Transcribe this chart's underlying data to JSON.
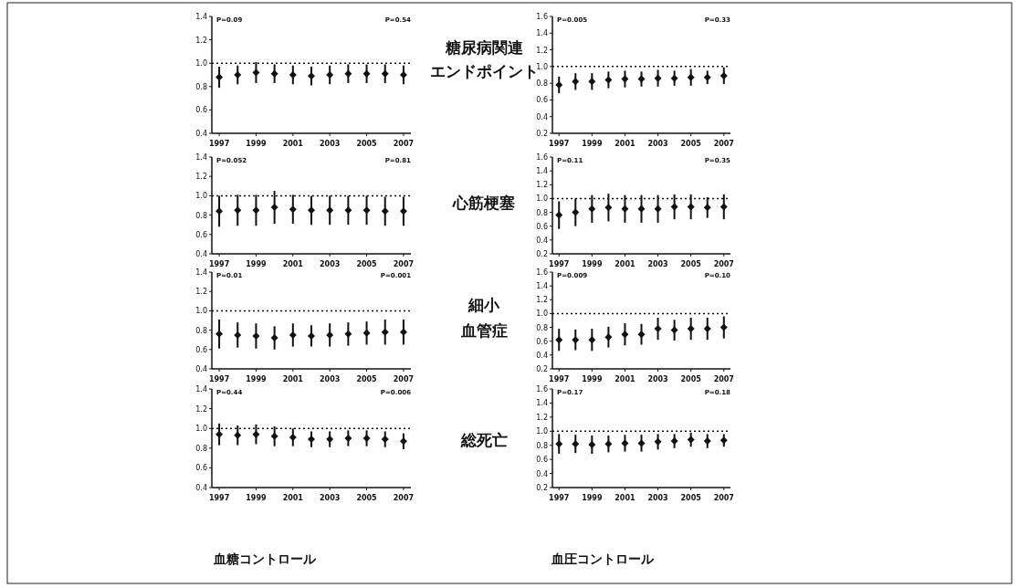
{
  "chart_data": [
    {
      "type": "scatter",
      "x": [
        1997,
        1998,
        1999,
        2000,
        2001,
        2002,
        2003,
        2004,
        2005,
        2006,
        2007
      ],
      "values": [
        0.88,
        0.9,
        0.92,
        0.91,
        0.9,
        0.89,
        0.9,
        0.91,
        0.91,
        0.91,
        0.9
      ],
      "errors": [
        0.09,
        0.08,
        0.09,
        0.08,
        0.08,
        0.08,
        0.08,
        0.08,
        0.08,
        0.08,
        0.08
      ],
      "color": "#111111",
      "marker": "diamond",
      "xlim": [
        1996.6,
        2007.4
      ],
      "xticks": [
        1997,
        1999,
        2001,
        2003,
        2005,
        2007
      ],
      "ylim": [
        0.4,
        1.4
      ],
      "yticks": [
        {
          "value": 0.4,
          "label": "0.4"
        },
        {
          "value": 0.6,
          "label": "0.6"
        },
        {
          "value": 0.8,
          "label": "0.8"
        },
        {
          "value": 1,
          "label": "1.0"
        },
        {
          "value": 1.2,
          "label": "1.2"
        },
        {
          "value": 1.4,
          "label": "1.4"
        }
      ],
      "ref_lines": [
        {
          "axis": "y",
          "value": 1,
          "line_style": "dotted"
        }
      ],
      "annotations": [
        "P=0.09",
        "P=0.54"
      ],
      "grid": false
    },
    {
      "type": "scatter",
      "x": [
        1997,
        1998,
        1999,
        2000,
        2001,
        2002,
        2003,
        2004,
        2005,
        2006,
        2007
      ],
      "values": [
        0.78,
        0.82,
        0.82,
        0.84,
        0.85,
        0.85,
        0.86,
        0.86,
        0.87,
        0.87,
        0.89
      ],
      "errors": [
        0.1,
        0.1,
        0.1,
        0.1,
        0.1,
        0.09,
        0.1,
        0.09,
        0.1,
        0.08,
        0.1
      ],
      "color": "#111111",
      "marker": "diamond",
      "xlim": [
        1996.6,
        2007.4
      ],
      "xticks": [
        1997,
        1999,
        2001,
        2003,
        2005,
        2007
      ],
      "ylim": [
        0.2,
        1.6
      ],
      "yticks": [
        {
          "value": 0.2,
          "label": "0.2"
        },
        {
          "value": 0.4,
          "label": "0.4"
        },
        {
          "value": 0.6,
          "label": "0.6"
        },
        {
          "value": 0.8,
          "label": "0.8"
        },
        {
          "value": 1,
          "label": "1.0"
        },
        {
          "value": 1.2,
          "label": "1.2"
        },
        {
          "value": 1.4,
          "label": "1.4"
        },
        {
          "value": 1.6,
          "label": "1.6"
        }
      ],
      "ref_lines": [
        {
          "axis": "y",
          "value": 1,
          "line_style": "dotted"
        }
      ],
      "annotations": [
        "P=0.005",
        "P=0.33"
      ],
      "grid": false
    },
    {
      "type": "scatter",
      "x": [
        1997,
        1998,
        1999,
        2000,
        2001,
        2002,
        2003,
        2004,
        2005,
        2006,
        2007
      ],
      "values": [
        0.84,
        0.85,
        0.85,
        0.88,
        0.86,
        0.85,
        0.85,
        0.85,
        0.85,
        0.84,
        0.84
      ],
      "errors": [
        0.16,
        0.16,
        0.16,
        0.17,
        0.15,
        0.15,
        0.15,
        0.15,
        0.15,
        0.15,
        0.15
      ],
      "color": "#111111",
      "marker": "diamond",
      "xlim": [
        1996.6,
        2007.4
      ],
      "xticks": [
        1997,
        1999,
        2001,
        2003,
        2005,
        2007
      ],
      "ylim": [
        0.4,
        1.4
      ],
      "yticks": [
        {
          "value": 0.4,
          "label": "0.4"
        },
        {
          "value": 0.6,
          "label": "0.6"
        },
        {
          "value": 0.8,
          "label": "0.8"
        },
        {
          "value": 1,
          "label": "1.0"
        },
        {
          "value": 1.2,
          "label": "1.2"
        },
        {
          "value": 1.4,
          "label": "1.4"
        }
      ],
      "ref_lines": [
        {
          "axis": "y",
          "value": 1,
          "line_style": "dotted"
        }
      ],
      "annotations": [
        "P=0.052",
        "P=0.81"
      ],
      "grid": false
    },
    {
      "type": "scatter",
      "x": [
        1997,
        1998,
        1999,
        2000,
        2001,
        2002,
        2003,
        2004,
        2005,
        2006,
        2007
      ],
      "values": [
        0.76,
        0.8,
        0.85,
        0.87,
        0.85,
        0.85,
        0.85,
        0.88,
        0.88,
        0.87,
        0.88
      ],
      "errors": [
        0.2,
        0.2,
        0.2,
        0.2,
        0.2,
        0.2,
        0.2,
        0.18,
        0.18,
        0.15,
        0.18
      ],
      "color": "#111111",
      "marker": "diamond",
      "xlim": [
        1996.6,
        2007.4
      ],
      "xticks": [
        1997,
        1999,
        2001,
        2003,
        2005,
        2007
      ],
      "ylim": [
        0.2,
        1.6
      ],
      "yticks": [
        {
          "value": 0.2,
          "label": "0.2"
        },
        {
          "value": 0.4,
          "label": "0.4"
        },
        {
          "value": 0.6,
          "label": "0.6"
        },
        {
          "value": 0.8,
          "label": "0.8"
        },
        {
          "value": 1,
          "label": "1.0"
        },
        {
          "value": 1.2,
          "label": "1.2"
        },
        {
          "value": 1.4,
          "label": "1.4"
        },
        {
          "value": 1.6,
          "label": "1.6"
        }
      ],
      "ref_lines": [
        {
          "axis": "y",
          "value": 1,
          "line_style": "dotted"
        }
      ],
      "annotations": [
        "P=0.11",
        "P=0.35"
      ],
      "grid": false
    },
    {
      "type": "scatter",
      "x": [
        1997,
        1998,
        1999,
        2000,
        2001,
        2002,
        2003,
        2004,
        2005,
        2006,
        2007
      ],
      "values": [
        0.76,
        0.75,
        0.74,
        0.72,
        0.75,
        0.74,
        0.75,
        0.76,
        0.77,
        0.78,
        0.78
      ],
      "errors": [
        0.15,
        0.13,
        0.13,
        0.12,
        0.12,
        0.11,
        0.12,
        0.12,
        0.12,
        0.13,
        0.13
      ],
      "color": "#111111",
      "marker": "diamond",
      "xlim": [
        1996.6,
        2007.4
      ],
      "xticks": [
        1997,
        1999,
        2001,
        2003,
        2005,
        2007
      ],
      "ylim": [
        0.4,
        1.4
      ],
      "yticks": [
        {
          "value": 0.4,
          "label": "0.4"
        },
        {
          "value": 0.6,
          "label": "0.6"
        },
        {
          "value": 0.8,
          "label": "0.8"
        },
        {
          "value": 1,
          "label": "1.0"
        },
        {
          "value": 1.2,
          "label": "1.2"
        },
        {
          "value": 1.4,
          "label": "1.4"
        }
      ],
      "ref_lines": [
        {
          "axis": "y",
          "value": 1,
          "line_style": "dotted"
        }
      ],
      "annotations": [
        "P=0.01",
        "P=0.001"
      ],
      "grid": false
    },
    {
      "type": "scatter",
      "x": [
        1997,
        1998,
        1999,
        2000,
        2001,
        2002,
        2003,
        2004,
        2005,
        2006,
        2007
      ],
      "values": [
        0.62,
        0.62,
        0.62,
        0.66,
        0.7,
        0.7,
        0.78,
        0.76,
        0.78,
        0.78,
        0.8
      ],
      "errors": [
        0.16,
        0.15,
        0.16,
        0.15,
        0.16,
        0.15,
        0.16,
        0.15,
        0.16,
        0.16,
        0.16
      ],
      "color": "#111111",
      "marker": "diamond",
      "xlim": [
        1996.6,
        2007.4
      ],
      "xticks": [
        1997,
        1999,
        2001,
        2003,
        2005,
        2007
      ],
      "ylim": [
        0.2,
        1.6
      ],
      "yticks": [
        {
          "value": 0.2,
          "label": "0.2"
        },
        {
          "value": 0.4,
          "label": "0.4"
        },
        {
          "value": 0.6,
          "label": "0.6"
        },
        {
          "value": 0.8,
          "label": "0.8"
        },
        {
          "value": 1,
          "label": "1.0"
        },
        {
          "value": 1.2,
          "label": "1.2"
        },
        {
          "value": 1.4,
          "label": "1.4"
        },
        {
          "value": 1.6,
          "label": "1.6"
        }
      ],
      "ref_lines": [
        {
          "axis": "y",
          "value": 1,
          "line_style": "dotted"
        }
      ],
      "annotations": [
        "P=0.009",
        "P=0.10"
      ],
      "grid": false
    },
    {
      "type": "scatter",
      "xlabel": "血糖コントロール",
      "x": [
        1997,
        1998,
        1999,
        2000,
        2001,
        2002,
        2003,
        2004,
        2005,
        2006,
        2007
      ],
      "values": [
        0.94,
        0.93,
        0.94,
        0.92,
        0.91,
        0.89,
        0.89,
        0.9,
        0.9,
        0.89,
        0.87
      ],
      "errors": [
        0.11,
        0.1,
        0.1,
        0.1,
        0.09,
        0.08,
        0.08,
        0.08,
        0.08,
        0.08,
        0.08
      ],
      "color": "#111111",
      "marker": "diamond",
      "xlim": [
        1996.6,
        2007.4
      ],
      "xticks": [
        1997,
        1999,
        2001,
        2003,
        2005,
        2007
      ],
      "ylim": [
        0.4,
        1.4
      ],
      "yticks": [
        {
          "value": 0.4,
          "label": "0.4"
        },
        {
          "value": 0.6,
          "label": "0.6"
        },
        {
          "value": 0.8,
          "label": "0.8"
        },
        {
          "value": 1,
          "label": "1.0"
        },
        {
          "value": 1.2,
          "label": "1.2"
        },
        {
          "value": 1.4,
          "label": "1.4"
        }
      ],
      "ref_lines": [
        {
          "axis": "y",
          "value": 1,
          "line_style": "dotted"
        }
      ],
      "annotations": [
        "P=0.44",
        "P=0.006"
      ],
      "grid": false
    },
    {
      "type": "scatter",
      "xlabel": "血圧コントロール",
      "x": [
        1997,
        1998,
        1999,
        2000,
        2001,
        2002,
        2003,
        2004,
        2005,
        2006,
        2007
      ],
      "values": [
        0.82,
        0.82,
        0.81,
        0.82,
        0.83,
        0.83,
        0.85,
        0.86,
        0.88,
        0.86,
        0.87
      ],
      "errors": [
        0.14,
        0.13,
        0.13,
        0.12,
        0.12,
        0.12,
        0.11,
        0.1,
        0.1,
        0.1,
        0.09
      ],
      "color": "#111111",
      "marker": "diamond",
      "xlim": [
        1996.6,
        2007.4
      ],
      "xticks": [
        1997,
        1999,
        2001,
        2003,
        2005,
        2007
      ],
      "ylim": [
        0.2,
        1.6
      ],
      "yticks": [
        {
          "value": 0.2,
          "label": "0.2"
        },
        {
          "value": 0.4,
          "label": "0.4"
        },
        {
          "value": 0.6,
          "label": "0.6"
        },
        {
          "value": 0.8,
          "label": "0.8"
        },
        {
          "value": 1,
          "label": "1.0"
        },
        {
          "value": 1.2,
          "label": "1.2"
        },
        {
          "value": 1.4,
          "label": "1.4"
        },
        {
          "value": 1.6,
          "label": "1.6"
        }
      ],
      "ref_lines": [
        {
          "axis": "y",
          "value": 1,
          "line_style": "dotted"
        }
      ],
      "annotations": [
        "P=0.17",
        "P=0.18"
      ],
      "grid": false
    },
    {
      "type": "other",
      "annotations": [
        "糖尿病関連",
        "エンドポイント",
        "心筋梗塞",
        "細小",
        "血管症",
        "総死亡"
      ]
    }
  ]
}
